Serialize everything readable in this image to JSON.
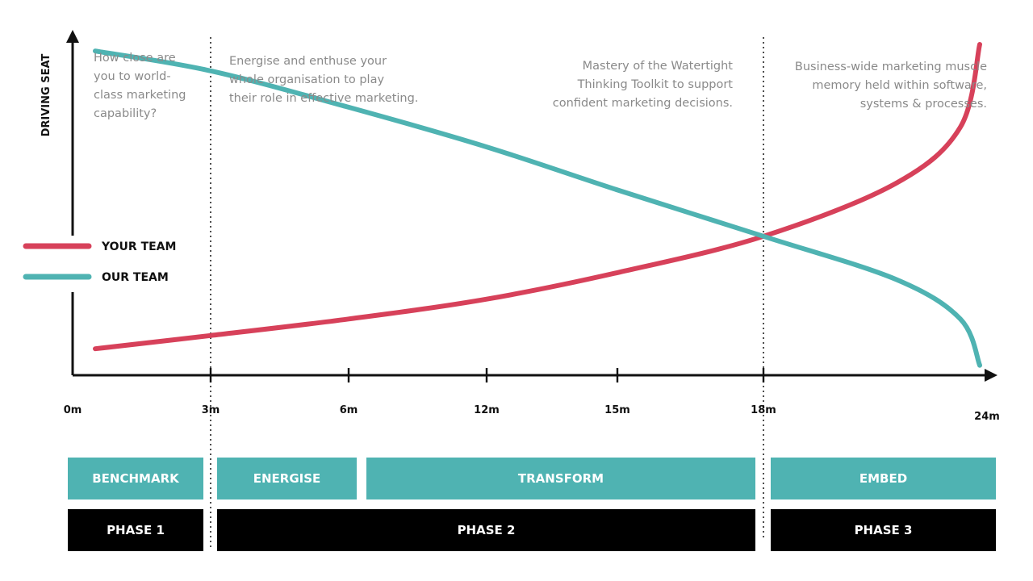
{
  "chart_data": {
    "type": "line",
    "ylabel": "DRIVING SEAT",
    "xlabel": "",
    "x_ticks": [
      "0m",
      "3m",
      "6m",
      "12m",
      "15m",
      "18m",
      "24m"
    ],
    "series": [
      {
        "name": "YOUR TEAM",
        "color": "#d7415a",
        "points": [
          {
            "x": "0m",
            "y": 0.08
          },
          {
            "x": "3m",
            "y": 0.12
          },
          {
            "x": "6m",
            "y": 0.17
          },
          {
            "x": "12m",
            "y": 0.23
          },
          {
            "x": "15m",
            "y": 0.31
          },
          {
            "x": "18m",
            "y": 0.42
          },
          {
            "x": "21m",
            "y": 0.58
          },
          {
            "x": "23m",
            "y": 0.75
          },
          {
            "x": "24m",
            "y": 1.0
          }
        ]
      },
      {
        "name": "OUR TEAM",
        "color": "#4fb3b2",
        "points": [
          {
            "x": "0m",
            "y": 0.98
          },
          {
            "x": "3m",
            "y": 0.92
          },
          {
            "x": "6m",
            "y": 0.81
          },
          {
            "x": "12m",
            "y": 0.69
          },
          {
            "x": "15m",
            "y": 0.56
          },
          {
            "x": "18m",
            "y": 0.42
          },
          {
            "x": "21m",
            "y": 0.29
          },
          {
            "x": "23m",
            "y": 0.17
          },
          {
            "x": "24m",
            "y": 0.03
          }
        ]
      }
    ],
    "annotations": [
      {
        "lines": [
          "How close are",
          "you to world-",
          "class marketing",
          "capability?"
        ]
      },
      {
        "lines": [
          "Energise and enthuse your",
          "whole organisation to play",
          "their role in effective marketing."
        ]
      },
      {
        "lines": [
          "Mastery of the Watertight",
          "Thinking Toolkit to support",
          "confident marketing decisions."
        ]
      },
      {
        "lines": [
          "Business-wide marketing muscle",
          "memory held within software,",
          "systems & processes."
        ]
      }
    ],
    "stages": [
      "BENCHMARK",
      "ENERGISE",
      "TRANSFORM",
      "EMBED"
    ],
    "phases": [
      "PHASE 1",
      "PHASE 2",
      "PHASE 3"
    ],
    "legend": "left",
    "grid": false
  },
  "colors": {
    "teal": "#4fb3b2",
    "red": "#d7415a",
    "black": "#000000",
    "axis": "#111111"
  }
}
